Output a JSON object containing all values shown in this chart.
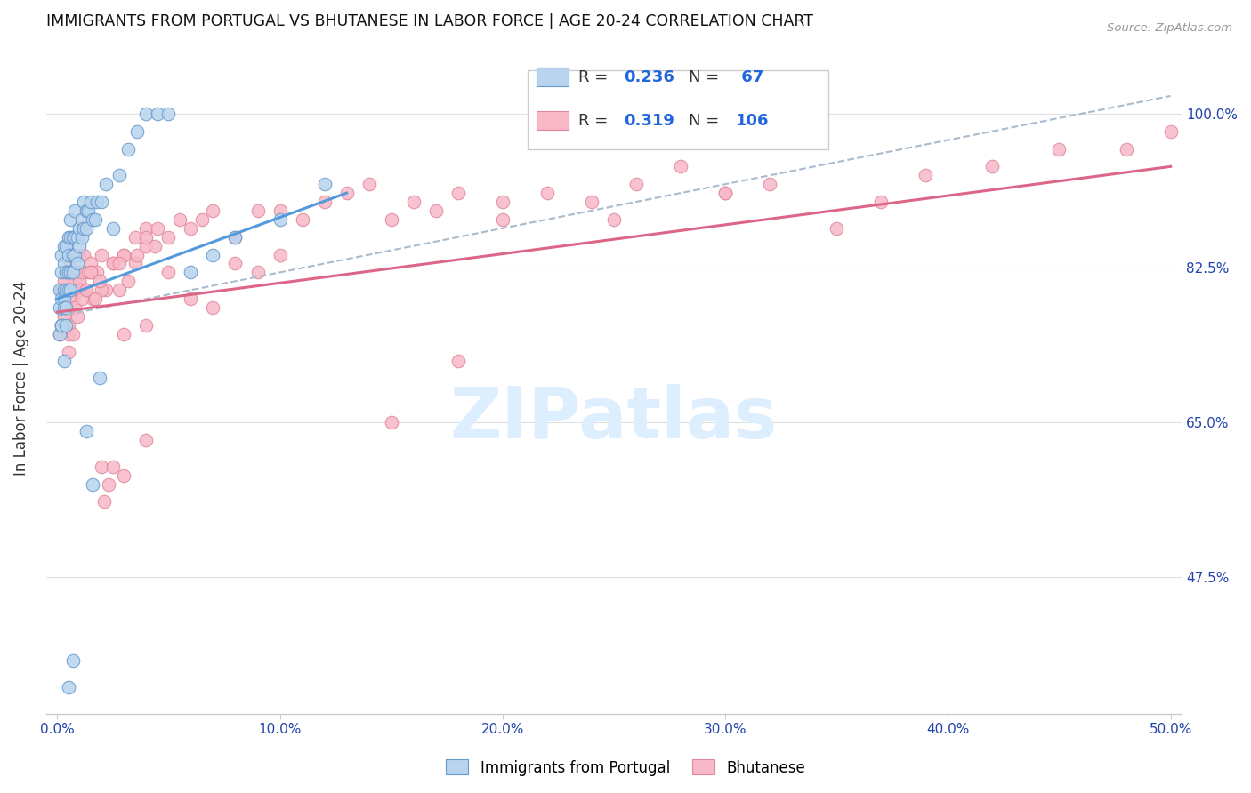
{
  "title": "IMMIGRANTS FROM PORTUGAL VS BHUTANESE IN LABOR FORCE | AGE 20-24 CORRELATION CHART",
  "source": "Source: ZipAtlas.com",
  "ylabel": "In Labor Force | Age 20-24",
  "xlim": [
    -0.005,
    0.505
  ],
  "ylim": [
    0.32,
    1.08
  ],
  "xtick_vals": [
    0.0,
    0.1,
    0.2,
    0.3,
    0.4,
    0.5
  ],
  "ytick_vals": [
    0.475,
    0.65,
    0.825,
    1.0
  ],
  "legend_R_portugal": "0.236",
  "legend_N_portugal": "67",
  "legend_R_bhutanese": "0.319",
  "legend_N_bhutanese": "106",
  "color_portugal_fill": "#b8d4ee",
  "color_portugal_edge": "#6699cc",
  "color_bhutanese_fill": "#f8b8c8",
  "color_bhutanese_edge": "#e08898",
  "color_trend_portugal": "#5599dd",
  "color_trend_bhutanese": "#dd6688",
  "color_trend_dashed": "#aabbcc",
  "watermark_text": "ZIPatlas",
  "watermark_color": "#ddeeff",
  "portugal_x": [
    0.001,
    0.001,
    0.001,
    0.002,
    0.002,
    0.002,
    0.002,
    0.002,
    0.003,
    0.003,
    0.003,
    0.003,
    0.003,
    0.004,
    0.004,
    0.004,
    0.004,
    0.005,
    0.005,
    0.005,
    0.005,
    0.006,
    0.006,
    0.006,
    0.006,
    0.007,
    0.007,
    0.007,
    0.008,
    0.008,
    0.008,
    0.009,
    0.009,
    0.01,
    0.01,
    0.011,
    0.011,
    0.012,
    0.012,
    0.013,
    0.013,
    0.014,
    0.015,
    0.016,
    0.017,
    0.018,
    0.02,
    0.022,
    0.025,
    0.028,
    0.032,
    0.036,
    0.04,
    0.045,
    0.05,
    0.06,
    0.07,
    0.08,
    0.1,
    0.12,
    0.013,
    0.016,
    0.019,
    0.005,
    0.007,
    0.003,
    0.004
  ],
  "portugal_y": [
    0.75,
    0.78,
    0.8,
    0.76,
    0.79,
    0.82,
    0.84,
    0.76,
    0.8,
    0.83,
    0.85,
    0.79,
    0.78,
    0.82,
    0.85,
    0.8,
    0.78,
    0.82,
    0.86,
    0.84,
    0.8,
    0.86,
    0.88,
    0.82,
    0.8,
    0.84,
    0.86,
    0.82,
    0.86,
    0.89,
    0.84,
    0.86,
    0.83,
    0.87,
    0.85,
    0.88,
    0.86,
    0.9,
    0.87,
    0.89,
    0.87,
    0.89,
    0.9,
    0.88,
    0.88,
    0.9,
    0.9,
    0.92,
    0.87,
    0.93,
    0.96,
    0.98,
    1.0,
    1.0,
    1.0,
    0.82,
    0.84,
    0.86,
    0.88,
    0.92,
    0.64,
    0.58,
    0.7,
    0.35,
    0.38,
    0.72,
    0.76
  ],
  "bhutanese_x": [
    0.001,
    0.002,
    0.002,
    0.003,
    0.003,
    0.004,
    0.004,
    0.005,
    0.005,
    0.005,
    0.006,
    0.006,
    0.007,
    0.007,
    0.008,
    0.008,
    0.009,
    0.009,
    0.01,
    0.01,
    0.011,
    0.012,
    0.013,
    0.014,
    0.015,
    0.016,
    0.018,
    0.02,
    0.022,
    0.025,
    0.028,
    0.03,
    0.035,
    0.04,
    0.045,
    0.05,
    0.055,
    0.06,
    0.065,
    0.07,
    0.08,
    0.09,
    0.1,
    0.11,
    0.12,
    0.13,
    0.14,
    0.15,
    0.16,
    0.17,
    0.18,
    0.2,
    0.22,
    0.24,
    0.26,
    0.28,
    0.3,
    0.32,
    0.35,
    0.37,
    0.39,
    0.42,
    0.45,
    0.48,
    0.5,
    0.2,
    0.25,
    0.3,
    0.15,
    0.18,
    0.03,
    0.04,
    0.05,
    0.06,
    0.07,
    0.08,
    0.09,
    0.1,
    0.005,
    0.008,
    0.01,
    0.015,
    0.02,
    0.025,
    0.03,
    0.035,
    0.04,
    0.02,
    0.03,
    0.04,
    0.005,
    0.007,
    0.009,
    0.011,
    0.013,
    0.015,
    0.017,
    0.019,
    0.021,
    0.023,
    0.025,
    0.028,
    0.032,
    0.036,
    0.04,
    0.044
  ],
  "bhutanese_y": [
    0.75,
    0.76,
    0.8,
    0.77,
    0.81,
    0.78,
    0.82,
    0.76,
    0.79,
    0.82,
    0.8,
    0.83,
    0.79,
    0.82,
    0.81,
    0.84,
    0.8,
    0.82,
    0.81,
    0.84,
    0.82,
    0.84,
    0.8,
    0.82,
    0.83,
    0.79,
    0.82,
    0.84,
    0.8,
    0.83,
    0.8,
    0.84,
    0.86,
    0.87,
    0.87,
    0.86,
    0.88,
    0.87,
    0.88,
    0.89,
    0.86,
    0.89,
    0.89,
    0.88,
    0.9,
    0.91,
    0.92,
    0.88,
    0.9,
    0.89,
    0.91,
    0.9,
    0.91,
    0.9,
    0.92,
    0.94,
    0.91,
    0.92,
    0.87,
    0.9,
    0.93,
    0.94,
    0.96,
    0.96,
    0.98,
    0.88,
    0.88,
    0.91,
    0.65,
    0.72,
    0.75,
    0.76,
    0.82,
    0.79,
    0.78,
    0.83,
    0.82,
    0.84,
    0.75,
    0.78,
    0.8,
    0.82,
    0.8,
    0.83,
    0.84,
    0.83,
    0.85,
    0.6,
    0.59,
    0.63,
    0.73,
    0.75,
    0.77,
    0.79,
    0.8,
    0.82,
    0.79,
    0.81,
    0.56,
    0.58,
    0.6,
    0.83,
    0.81,
    0.84,
    0.86,
    0.85
  ],
  "trend_portugal_x0": 0.0,
  "trend_portugal_x1": 0.13,
  "trend_portugal_y0": 0.79,
  "trend_portugal_y1": 0.91,
  "trend_bhutanese_x0": 0.0,
  "trend_bhutanese_x1": 0.5,
  "trend_bhutanese_y0": 0.775,
  "trend_bhutanese_y1": 0.94,
  "trend_dashed_x0": 0.0,
  "trend_dashed_x1": 0.5,
  "trend_dashed_y0": 0.77,
  "trend_dashed_y1": 1.02
}
